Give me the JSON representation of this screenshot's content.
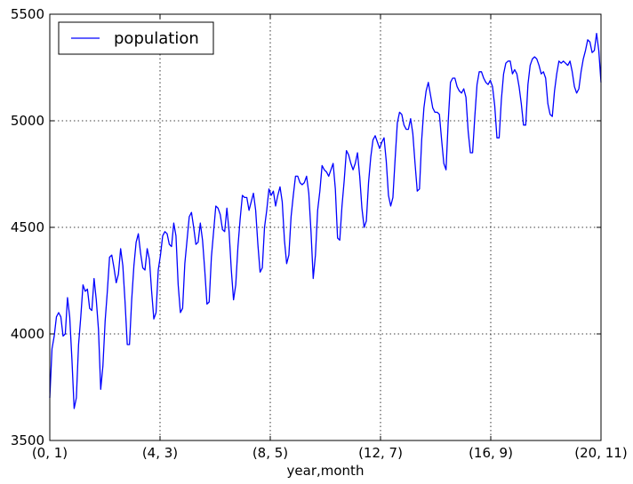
{
  "chart_data": {
    "type": "line",
    "title": "",
    "xlabel": "year,month",
    "ylabel": "",
    "ylim": [
      3500,
      5500
    ],
    "yticks": [
      3500,
      4000,
      4500,
      5000,
      5500
    ],
    "xtick_labels": [
      "(0, 1)",
      "(4, 3)",
      "(8, 5)",
      "(12, 7)",
      "(16, 9)",
      "(20, 11)"
    ],
    "grid": true,
    "legend": {
      "position": "top-left"
    },
    "series_color": "#0000ff",
    "series": [
      {
        "name": "population",
        "values": [
          3700,
          3930,
          3990,
          4080,
          4100,
          4080,
          3990,
          4000,
          4170,
          4080,
          3880,
          3650,
          3700,
          3950,
          4080,
          4230,
          4200,
          4210,
          4120,
          4110,
          4260,
          4160,
          4020,
          3740,
          3850,
          4060,
          4200,
          4360,
          4370,
          4310,
          4240,
          4280,
          4400,
          4320,
          4150,
          3950,
          3950,
          4160,
          4320,
          4430,
          4470,
          4380,
          4310,
          4300,
          4400,
          4350,
          4200,
          4070,
          4100,
          4300,
          4370,
          4460,
          4480,
          4470,
          4420,
          4410,
          4520,
          4460,
          4230,
          4100,
          4120,
          4330,
          4440,
          4550,
          4570,
          4500,
          4420,
          4430,
          4520,
          4440,
          4300,
          4140,
          4150,
          4360,
          4480,
          4600,
          4590,
          4560,
          4490,
          4480,
          4590,
          4480,
          4300,
          4160,
          4230,
          4410,
          4540,
          4650,
          4640,
          4640,
          4580,
          4620,
          4660,
          4580,
          4420,
          4290,
          4310,
          4500,
          4580,
          4680,
          4650,
          4670,
          4600,
          4650,
          4690,
          4620,
          4440,
          4330,
          4370,
          4550,
          4650,
          4740,
          4740,
          4710,
          4700,
          4710,
          4740,
          4660,
          4480,
          4260,
          4370,
          4580,
          4670,
          4790,
          4770,
          4760,
          4740,
          4770,
          4800,
          4680,
          4450,
          4440,
          4600,
          4720,
          4860,
          4840,
          4800,
          4770,
          4800,
          4850,
          4740,
          4590,
          4500,
          4530,
          4710,
          4830,
          4910,
          4930,
          4900,
          4870,
          4900,
          4920,
          4810,
          4650,
          4600,
          4640,
          4820,
          4990,
          5040,
          5030,
          4980,
          4960,
          4960,
          5010,
          4940,
          4800,
          4670,
          4680,
          4910,
          5060,
          5140,
          5180,
          5120,
          5060,
          5040,
          5040,
          5030,
          4910,
          4800,
          4770,
          5000,
          5180,
          5200,
          5200,
          5160,
          5140,
          5130,
          5150,
          5110,
          4950,
          4850,
          4850,
          5020,
          5170,
          5230,
          5230,
          5200,
          5180,
          5170,
          5190,
          5160,
          5070,
          4920,
          4920,
          5100,
          5220,
          5270,
          5280,
          5280,
          5220,
          5240,
          5220,
          5160,
          5080,
          4980,
          4980,
          5170,
          5260,
          5290,
          5300,
          5290,
          5260,
          5220,
          5230,
          5200,
          5080,
          5030,
          5020,
          5140,
          5220,
          5280,
          5270,
          5280,
          5270,
          5260,
          5280,
          5230,
          5160,
          5130,
          5150,
          5230,
          5290,
          5330,
          5380,
          5370,
          5320,
          5330,
          5410,
          5330,
          5180
        ]
      }
    ]
  }
}
